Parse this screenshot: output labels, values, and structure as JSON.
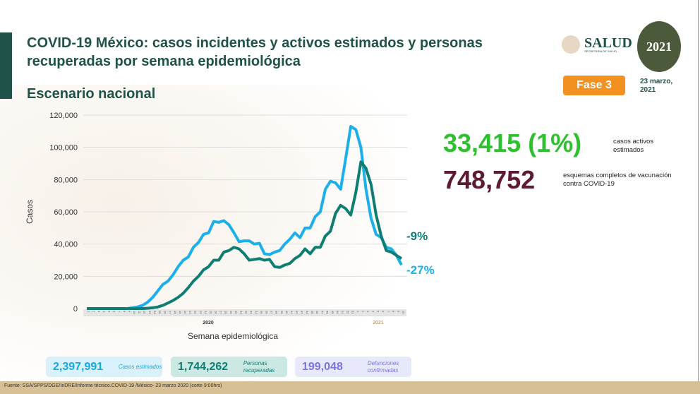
{
  "title": "COVID-19 México: casos incidentes y activos estimados y personas recuperadas por semana epidemiológica",
  "subtitle": "Escenario nacional",
  "logos": {
    "salud": "SALUD",
    "salud_sub": "SECRETARÍA DE SALUD",
    "mexico": "México 2021 Año de la Independencia"
  },
  "fase": "Fase 3",
  "date": "23 marzo, 2021",
  "stats": {
    "active": "33,415 (1%)",
    "active_label": "casos activos estimados",
    "vaccine": "748,752",
    "vaccine_label": "esquemas completos de vacunación contra COVID-19"
  },
  "boxes": [
    {
      "value": "2,397,991",
      "label": "Casos estimados",
      "color": "#16a9e0",
      "bg": "#d8f1fb"
    },
    {
      "value": "1,744,262",
      "label": "Personas recuperadas",
      "color": "#0e7e72",
      "bg": "#cce8e3"
    },
    {
      "value": "199,048",
      "label": "Defunciones confirmadas",
      "color": "#7a74e0",
      "bg": "#e8e8fb"
    }
  ],
  "footer": "Fuente: SSA/SPPS/DGE/InDRE/Informe técnico.COVID-19 /México- 23 marzo 2020 (corte 9:00hrs)",
  "chart_data": {
    "type": "line",
    "xlabel": "Semana epidemiológica",
    "ylabel": "Casos",
    "ylim": [
      0,
      120000
    ],
    "yticks": [
      "0",
      "20,000",
      "40,000",
      "60,000",
      "80,000",
      "100,000",
      "120,000"
    ],
    "year_labels": [
      "2020",
      "2021"
    ],
    "x": [
      "1",
      "2",
      "3",
      "4",
      "5",
      "6",
      "7",
      "8",
      "9",
      "10",
      "11",
      "12",
      "13",
      "14",
      "15",
      "16",
      "17",
      "18",
      "19",
      "20",
      "21",
      "22",
      "23",
      "24",
      "25",
      "26",
      "27",
      "28",
      "29",
      "30",
      "31",
      "32",
      "33",
      "34",
      "35",
      "36",
      "37",
      "38",
      "39",
      "40",
      "41",
      "42",
      "43",
      "44",
      "45",
      "46",
      "47",
      "48",
      "49",
      "50",
      "51",
      "52",
      "53",
      "1",
      "2",
      "3",
      "4",
      "5",
      "6",
      "7",
      "8",
      "9",
      "10"
    ],
    "grid": true,
    "series": [
      {
        "color": "#1bb0ea",
        "end_label": "-27%",
        "values": [
          0,
          0,
          0,
          0,
          0,
          0,
          0,
          0,
          0,
          500,
          1000,
          2000,
          4000,
          7000,
          11000,
          15000,
          17000,
          21000,
          26000,
          30000,
          32000,
          38000,
          41000,
          46000,
          47000,
          54000,
          53500,
          54500,
          52000,
          47000,
          41500,
          42000,
          42000,
          40000,
          40500,
          34000,
          33500,
          35000,
          36000,
          40000,
          43000,
          47000,
          44000,
          50000,
          50000,
          57000,
          60000,
          74000,
          79000,
          78000,
          74000,
          93000,
          113000,
          111000,
          100000,
          74000,
          56000,
          46000,
          44000,
          38000,
          37000,
          33000,
          27000
        ]
      },
      {
        "color": "#0e7e72",
        "end_label": "-9%",
        "values": [
          0,
          0,
          0,
          0,
          0,
          0,
          0,
          0,
          0,
          0,
          0,
          0,
          200,
          500,
          1000,
          2000,
          3500,
          5000,
          7000,
          9500,
          13000,
          17000,
          20000,
          24000,
          26000,
          30000,
          30000,
          35000,
          36000,
          38000,
          37000,
          34000,
          30000,
          30500,
          31000,
          30000,
          30500,
          26000,
          25500,
          27000,
          28000,
          31000,
          33000,
          37000,
          34000,
          38000,
          38000,
          45000,
          48000,
          59000,
          64000,
          62000,
          58000,
          72000,
          91000,
          87000,
          77000,
          58000,
          45000,
          36000,
          35000,
          33000,
          31000
        ]
      }
    ]
  }
}
